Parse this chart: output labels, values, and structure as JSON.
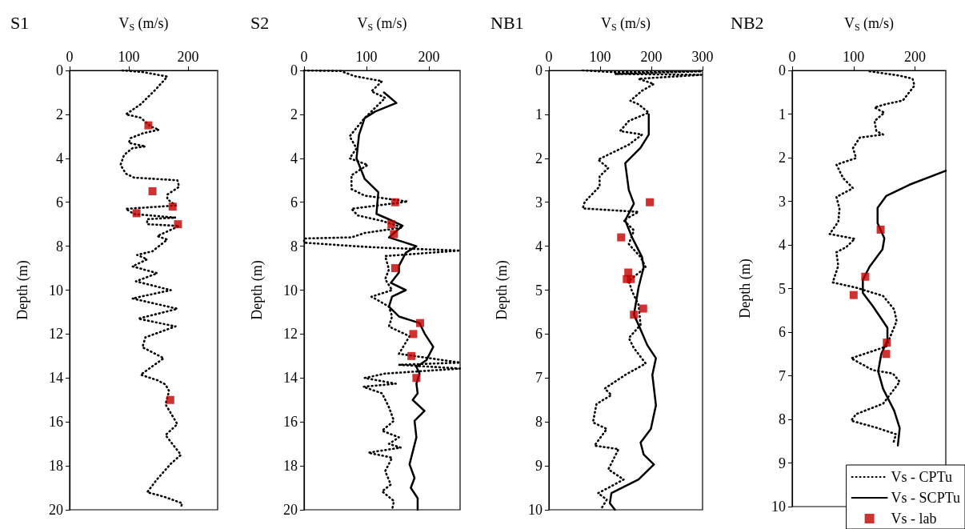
{
  "chart_data": [
    {
      "type": "line",
      "title": "S1",
      "xlabel": "V$_{S}$ (m/s)",
      "ylabel": "Depth (m)",
      "xlim": [
        0,
        250
      ],
      "xticks": [
        0,
        100,
        200
      ],
      "ylim": [
        20,
        0
      ],
      "yticks": [
        0,
        2,
        4,
        6,
        8,
        10,
        12,
        14,
        16,
        18,
        20
      ],
      "series": [
        {
          "type": "line",
          "color": "#000000",
          "line_style": "dotted",
          "marker": "none",
          "x": [
            89,
            125,
            165,
            146,
            120,
            95,
            120,
            137,
            151,
            125,
            103,
            100,
            128,
            106,
            92,
            86,
            95,
            109,
            182,
            185,
            165,
            165,
            179,
            95,
            109,
            179,
            131,
            131,
            185,
            148,
            165,
            140,
            114,
            131,
            106,
            148,
            112,
            171,
            106,
            182,
            116,
            179,
            128,
            123,
            159,
            120,
            148,
            162,
            168,
            162,
            182,
            162,
            188,
            171,
            148,
            131,
            159,
            190,
            188
          ],
          "values": [
            0,
            0.08,
            0.28,
            0.85,
            1.54,
            2.0,
            2.15,
            2.55,
            2.7,
            2.85,
            3.08,
            3.3,
            3.46,
            3.54,
            3.85,
            4.3,
            4.7,
            4.88,
            5.0,
            5.3,
            5.65,
            5.85,
            6.15,
            6.3,
            6.54,
            6.7,
            6.77,
            7.0,
            7.08,
            7.54,
            7.7,
            8.23,
            8.4,
            8.6,
            8.92,
            9.23,
            9.6,
            10.0,
            10.38,
            10.85,
            11.3,
            11.65,
            12.15,
            12.6,
            13.1,
            13.85,
            14.1,
            14.3,
            14.6,
            15.2,
            16.1,
            16.6,
            17.5,
            17.9,
            18.6,
            19.2,
            19.4,
            19.7,
            19.9
          ]
        },
        {
          "type": "scatter",
          "color": "#c00000",
          "marker": "square",
          "x": [
            133,
            140,
            174,
            113,
            183,
            170
          ],
          "values": [
            2.5,
            5.5,
            6.2,
            6.5,
            7.0,
            15.0
          ]
        }
      ]
    },
    {
      "type": "line",
      "title": "S2",
      "xlabel": "V$_{S}$ (m/s)",
      "ylabel": "Depth (m)",
      "xlim": [
        0,
        250
      ],
      "xticks": [
        0,
        100,
        200
      ],
      "ylim": [
        20,
        0
      ],
      "yticks": [
        0,
        2,
        4,
        6,
        8,
        10,
        12,
        14,
        16,
        18,
        20
      ],
      "series": [
        {
          "type": "line",
          "color": "#000000",
          "line_style": "dotted",
          "marker": "none",
          "x": [
            0,
            59,
            81,
            125,
            108,
            130,
            114,
            97,
            73,
            84,
            73,
            102,
            76,
            76,
            97,
            166,
            76,
            86,
            125,
            158,
            97,
            76,
            0,
            0,
            81,
            125,
            250,
            130,
            136,
            130,
            141,
            108,
            136,
            141,
            136,
            169,
            152,
            250,
            152,
            250,
            130,
            97,
            147,
            95,
            125,
            136,
            144,
            125,
            152,
            136,
            155,
            103,
            141,
            130,
            139,
            125,
            144,
            141
          ],
          "values": [
            0,
            0.03,
            0.26,
            0.49,
            0.95,
            1.25,
            1.7,
            2.17,
            3.0,
            3.55,
            4.0,
            4.3,
            4.77,
            5.4,
            5.7,
            5.97,
            6.3,
            6.6,
            6.85,
            7.15,
            7.4,
            7.6,
            7.65,
            7.84,
            8.0,
            8.07,
            8.2,
            8.45,
            9.06,
            9.5,
            10.0,
            10.3,
            10.75,
            11.2,
            11.66,
            12.1,
            12.9,
            13.3,
            13.4,
            13.57,
            13.8,
            14.0,
            14.26,
            14.4,
            14.7,
            15.33,
            15.95,
            16.4,
            16.7,
            17.0,
            17.17,
            17.4,
            17.63,
            18.24,
            18.85,
            19.16,
            19.6,
            20
          ]
        },
        {
          "type": "line",
          "color": "#000000",
          "line_style": "solid",
          "marker": "none",
          "x": [
            128,
            148,
            114,
            97,
            88,
            84,
            97,
            119,
            116,
            141,
            158,
            136,
            180,
            163,
            152,
            152,
            139,
            163,
            141,
            136,
            152,
            185,
            193,
            207,
            196,
            180,
            185,
            180,
            182,
            174,
            193,
            177,
            180,
            169,
            177,
            171,
            182,
            182
          ],
          "values": [
            1.0,
            1.48,
            1.87,
            2.17,
            2.94,
            4.0,
            4.93,
            5.54,
            6.53,
            6.84,
            7.07,
            7.6,
            8.0,
            8.3,
            8.9,
            9.2,
            9.67,
            10.0,
            10.3,
            10.75,
            11.2,
            11.5,
            11.97,
            12.58,
            13.19,
            13.5,
            13.8,
            14.26,
            14.7,
            15.0,
            15.5,
            15.95,
            16.7,
            17.93,
            18.55,
            19.0,
            19.47,
            20
          ]
        },
        {
          "type": "scatter",
          "color": "#c00000",
          "marker": "square",
          "x": [
            146,
            140,
            144,
            146,
            186,
            175,
            172,
            180
          ],
          "values": [
            6.0,
            7.0,
            7.45,
            9.0,
            11.5,
            12.0,
            13.0,
            14.0
          ]
        }
      ]
    },
    {
      "type": "line",
      "title": "NB1",
      "xlabel": "V$_{S}$ (m/s)",
      "ylabel": "Depth (m)",
      "xlim": [
        0,
        300
      ],
      "xticks": [
        0,
        100,
        200,
        300
      ],
      "ylim": [
        10,
        0
      ],
      "yticks": [
        0,
        1,
        2,
        3,
        4,
        5,
        6,
        7,
        8,
        9,
        10
      ],
      "series": [
        {
          "type": "line",
          "color": "#000000",
          "line_style": "dotted",
          "marker": "none",
          "x": [
            66,
            129,
            298,
            129,
            298,
            175,
            205,
            182,
            159,
            175,
            195,
            156,
            139,
            182,
            156,
            96,
            116,
            99,
            99,
            70,
            66,
            175,
            146,
            166,
            156,
            179,
            189,
            156,
            162,
            175,
            179,
            156,
            166,
            189,
            149,
            109,
            122,
            93,
            86,
            113,
            89,
            136,
            116,
            146,
            116,
            96,
            113,
            103
          ],
          "values": [
            0,
            0.04,
            0.02,
            0.08,
            0.1,
            0.19,
            0.31,
            0.46,
            0.69,
            0.77,
            0.96,
            1.15,
            1.38,
            1.46,
            1.69,
            2.03,
            2.22,
            2.41,
            2.64,
            2.99,
            3.14,
            3.22,
            3.41,
            3.64,
            3.95,
            4.25,
            4.48,
            4.79,
            5.02,
            5.33,
            5.79,
            6.09,
            6.32,
            6.67,
            6.93,
            7.24,
            7.39,
            7.59,
            8.01,
            8.16,
            8.54,
            8.62,
            9.08,
            9.31,
            9.5,
            9.62,
            9.77,
            9.96
          ]
        },
        {
          "type": "line",
          "color": "#000000",
          "line_style": "solid",
          "marker": "none",
          "x": [
            195,
            195,
            179,
            149,
            156,
            166,
            149,
            162,
            182,
            185,
            175,
            166,
            175,
            192,
            209,
            202,
            209,
            199,
            179,
            185,
            205,
            175,
            122,
            119,
            129
          ],
          "values": [
            1.0,
            1.46,
            1.76,
            2.11,
            2.72,
            3.03,
            3.41,
            3.79,
            4.25,
            4.48,
            4.94,
            5.56,
            5.79,
            6.25,
            6.55,
            6.93,
            7.62,
            8.16,
            8.47,
            8.74,
            8.97,
            9.31,
            9.62,
            9.85,
            10
          ]
        },
        {
          "type": "scatter",
          "color": "#c00000",
          "marker": "square",
          "x": [
            197,
            141,
            155,
            152,
            160,
            184,
            166
          ],
          "values": [
            3.0,
            3.8,
            4.6,
            4.75,
            4.75,
            5.42,
            5.56
          ]
        }
      ]
    },
    {
      "type": "line",
      "title": "NB2",
      "xlabel": "V$_{S}$ (m/s)",
      "ylabel": "Depth (m)",
      "xlim": [
        0,
        250
      ],
      "xticks": [
        0,
        100,
        200
      ],
      "ylim": [
        10,
        0
      ],
      "yticks": [
        0,
        1,
        2,
        3,
        4,
        5,
        6,
        7,
        8,
        9,
        10
      ],
      "legend": "bottom right",
      "series": [
        {
          "type": "line",
          "name": "Vs - CPTu",
          "color": "#000000",
          "line_style": "dotted",
          "marker": "none",
          "x": [
            126,
            175,
            196,
            199,
            180,
            153,
            134,
            150,
            134,
            137,
            148,
            110,
            99,
            104,
            72,
            83,
            99,
            72,
            77,
            75,
            61,
            102,
            88,
            72,
            75,
            66,
            104,
            148,
            166,
            170,
            153,
            96,
            131,
            164,
            175,
            148,
            104,
            96,
            137,
            169,
            164
          ],
          "values": [
            0.02,
            0.12,
            0.19,
            0.35,
            0.69,
            0.77,
            0.85,
            0.97,
            1.16,
            1.39,
            1.47,
            1.54,
            1.78,
            2.01,
            2.16,
            2.47,
            2.7,
            2.9,
            3.17,
            3.47,
            3.75,
            3.86,
            4.05,
            4.17,
            4.48,
            4.86,
            4.98,
            5.17,
            5.48,
            5.75,
            6.33,
            6.6,
            6.87,
            6.95,
            7.14,
            7.64,
            7.88,
            8.03,
            8.19,
            8.34,
            8.57
          ]
        },
        {
          "type": "line",
          "name": "Vs - SCPTu",
          "color": "#000000",
          "line_style": "solid",
          "marker": "none",
          "x": [
            250,
            191,
            153,
            139,
            139,
            150,
            147,
            126,
            115,
            115,
            131,
            155,
            155,
            145,
            140,
            148,
            166,
            175,
            172
          ],
          "values": [
            2.3,
            2.62,
            2.88,
            3.15,
            3.5,
            3.85,
            4.1,
            4.5,
            4.8,
            5.1,
            5.4,
            5.9,
            6.2,
            6.5,
            6.9,
            7.3,
            7.8,
            8.2,
            8.6
          ]
        },
        {
          "type": "scatter",
          "name": "Vs - lab",
          "color": "#c00000",
          "marker": "square",
          "x": [
            144,
            119,
            100,
            154,
            153
          ],
          "values": [
            3.65,
            4.73,
            5.15,
            6.24,
            6.5
          ]
        }
      ]
    }
  ]
}
